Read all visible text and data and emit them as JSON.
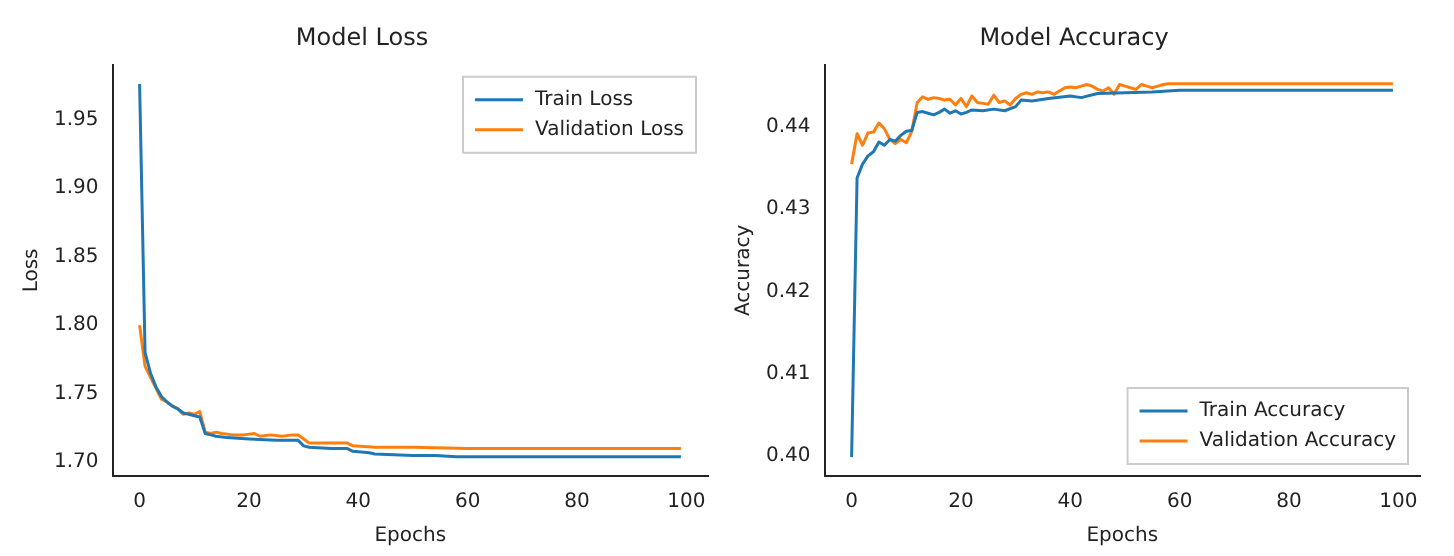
{
  "chart_data": [
    {
      "type": "line",
      "title": "Model Loss",
      "xlabel": "Epochs",
      "ylabel": "Loss",
      "xlim": [
        -4.95,
        103.95
      ],
      "xticks": [
        0,
        20,
        40,
        60,
        80,
        100
      ],
      "ylim": [
        1.69,
        1.99
      ],
      "yticks": [
        {
          "value": 1.7,
          "label": "1.70"
        },
        1.75,
        {
          "value": 1.8,
          "label": "1.80"
        },
        1.85,
        {
          "value": 1.9,
          "label": "1.90"
        },
        1.95
      ],
      "grid": false,
      "legend": "top right",
      "marker": "none",
      "line_style": "solid",
      "series": [
        {
          "name": "Train Loss",
          "color": "#1f77b4",
          "x": [
            0,
            1,
            2,
            3,
            4,
            5,
            6,
            7,
            8,
            9,
            10,
            11,
            12,
            13,
            14,
            16,
            20,
            25,
            29,
            30,
            31,
            35,
            38,
            39,
            42,
            43,
            50,
            54,
            58,
            70,
            99
          ],
          "values": [
            1.976,
            1.78,
            1.765,
            1.755,
            1.748,
            1.744,
            1.741,
            1.739,
            1.736,
            1.735,
            1.734,
            1.733,
            1.721,
            1.72,
            1.719,
            1.718,
            1.717,
            1.716,
            1.716,
            1.712,
            1.711,
            1.71,
            1.71,
            1.708,
            1.707,
            1.706,
            1.705,
            1.705,
            1.704,
            1.704,
            1.704
          ]
        },
        {
          "name": "Validation Loss",
          "color": "#ff7f0e",
          "x": [
            0,
            1,
            2,
            3,
            4,
            5,
            6,
            7,
            8,
            9,
            10,
            11,
            12,
            13,
            14,
            15,
            17,
            19,
            21,
            22,
            24,
            26,
            28,
            29,
            30,
            31,
            35,
            38,
            39,
            43,
            50,
            60,
            99
          ],
          "values": [
            1.8,
            1.77,
            1.762,
            1.754,
            1.746,
            1.744,
            1.741,
            1.739,
            1.735,
            1.736,
            1.735,
            1.737,
            1.722,
            1.721,
            1.722,
            1.721,
            1.72,
            1.72,
            1.721,
            1.719,
            1.72,
            1.719,
            1.72,
            1.72,
            1.717,
            1.714,
            1.714,
            1.714,
            1.712,
            1.711,
            1.711,
            1.71,
            1.71
          ]
        }
      ]
    },
    {
      "type": "line",
      "title": "Model Accuracy",
      "xlabel": "Epochs",
      "ylabel": "Accuracy",
      "xlim": [
        -4.95,
        103.95
      ],
      "xticks": [
        0,
        20,
        40,
        60,
        80,
        100
      ],
      "ylim": [
        0.3975,
        0.4476
      ],
      "yticks": [
        {
          "value": 0.4,
          "label": "0.40"
        },
        0.41,
        0.42,
        0.43,
        0.44
      ],
      "grid": false,
      "legend": "bottom right",
      "marker": "none",
      "line_style": "solid",
      "series": [
        {
          "name": "Train Accuracy",
          "color": "#1f77b4",
          "x": [
            0,
            1,
            2,
            3,
            4,
            5,
            6,
            7,
            8,
            9,
            10,
            11,
            12,
            13,
            14,
            15,
            16,
            17,
            18,
            19,
            20,
            21,
            22,
            24,
            26,
            28,
            30,
            31,
            33,
            36,
            40,
            42,
            45,
            50,
            55,
            60,
            99
          ],
          "values": [
            0.3998,
            0.4338,
            0.4355,
            0.4365,
            0.437,
            0.4382,
            0.4378,
            0.4385,
            0.4383,
            0.439,
            0.4395,
            0.4396,
            0.4418,
            0.4419,
            0.4417,
            0.4415,
            0.4418,
            0.4422,
            0.4417,
            0.442,
            0.4416,
            0.4418,
            0.4421,
            0.442,
            0.4422,
            0.442,
            0.4425,
            0.4433,
            0.4432,
            0.4435,
            0.4438,
            0.4436,
            0.4441,
            0.4442,
            0.4443,
            0.4445,
            0.4445
          ]
        },
        {
          "name": "Validation Accuracy",
          "color": "#ff7f0e",
          "x": [
            0,
            1,
            2,
            3,
            4,
            5,
            6,
            7,
            8,
            9,
            10,
            11,
            12,
            13,
            14,
            15,
            16,
            17,
            18,
            19,
            20,
            21,
            22,
            23,
            24,
            25,
            26,
            27,
            28,
            29,
            30,
            31,
            32,
            33,
            34,
            35,
            36,
            37,
            38,
            39,
            40,
            41,
            42,
            43,
            44,
            45,
            46,
            47,
            48,
            49,
            50,
            51,
            52,
            53,
            54,
            55,
            56,
            57,
            58,
            99
          ],
          "values": [
            0.4355,
            0.4392,
            0.4378,
            0.4393,
            0.4394,
            0.4405,
            0.4398,
            0.4385,
            0.438,
            0.4385,
            0.4381,
            0.4395,
            0.443,
            0.4437,
            0.4434,
            0.4436,
            0.4435,
            0.4433,
            0.4434,
            0.4427,
            0.4435,
            0.4425,
            0.4438,
            0.443,
            0.4429,
            0.4428,
            0.4439,
            0.443,
            0.4432,
            0.4427,
            0.4435,
            0.444,
            0.4442,
            0.444,
            0.4443,
            0.4442,
            0.4443,
            0.444,
            0.4444,
            0.4448,
            0.4449,
            0.4448,
            0.445,
            0.4452,
            0.445,
            0.4446,
            0.4444,
            0.4448,
            0.444,
            0.4452,
            0.445,
            0.4448,
            0.4446,
            0.4452,
            0.445,
            0.4448,
            0.445,
            0.4452,
            0.4453,
            0.4453
          ]
        }
      ]
    }
  ]
}
